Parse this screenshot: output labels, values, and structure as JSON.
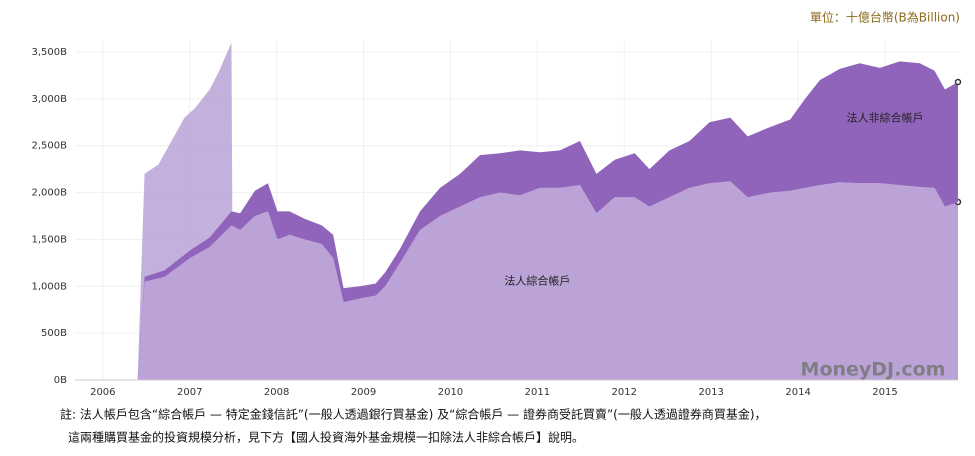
{
  "chart_data": {
    "type": "stacked_area",
    "unit_label": "單位：十億台幣(B為Billion)",
    "watermark": "MoneyDJ.com",
    "notes": [
      "註: 法人帳戶包含“綜合帳戶 — 特定金錢信託”(一般人透過銀行買基金) 及“綜合帳戶 — 證券商受託買賣”(一般人透過證券商買基金)，",
      "這兩種購買基金的投資規模分析，見下方【國人投資海外基金規模一扣除法人非綜合帳戶】說明。"
    ],
    "xlim": [
      2005.68,
      2015.84
    ],
    "xticks": [
      2006,
      2007,
      2008,
      2009,
      2010,
      2011,
      2012,
      2013,
      2014,
      2015
    ],
    "ylim": [
      0,
      3500
    ],
    "yticks": [
      {
        "value": 0,
        "label": "0B"
      },
      {
        "value": 500,
        "label": "500B"
      },
      {
        "value": 1000,
        "label": "1,000B"
      },
      {
        "value": 1500,
        "label": "1,500B"
      },
      {
        "value": 2000,
        "label": "2,000B"
      },
      {
        "value": 2500,
        "label": "2,500B"
      },
      {
        "value": 3000,
        "label": "3,000B"
      },
      {
        "value": 3500,
        "label": "3,500B"
      }
    ],
    "grid": true,
    "x": [
      2006.16,
      2006.4,
      2006.48,
      2006.71,
      2007.0,
      2007.23,
      2007.48,
      2007.58,
      2007.75,
      2007.9,
      2008.01,
      2008.15,
      2008.32,
      2008.52,
      2008.65,
      2008.77,
      2008.96,
      2009.14,
      2009.25,
      2009.42,
      2009.65,
      2009.88,
      2010.11,
      2010.34,
      2010.57,
      2010.8,
      2011.03,
      2011.26,
      2011.49,
      2011.68,
      2011.89,
      2012.12,
      2012.29,
      2012.52,
      2012.75,
      2012.98,
      2013.22,
      2013.42,
      2013.68,
      2013.91,
      2014.08,
      2014.25,
      2014.48,
      2014.71,
      2014.94,
      2015.17,
      2015.4,
      2015.57,
      2015.69,
      2015.84
    ],
    "series": [
      {
        "name": "法人綜合帳戶",
        "color": "#bba3d8",
        "values": [
          0,
          0,
          1050,
          1100,
          1300,
          1420,
          1650,
          1600,
          1750,
          1800,
          1500,
          1550,
          1500,
          1450,
          1300,
          830,
          870,
          900,
          1000,
          1250,
          1600,
          1750,
          1850,
          1950,
          2000,
          1970,
          2050,
          2050,
          2080,
          1780,
          1950,
          1950,
          1850,
          1950,
          2050,
          2100,
          2120,
          1950,
          2000,
          2020,
          2050,
          2080,
          2110,
          2100,
          2100,
          2080,
          2060,
          2050,
          1850,
          1900
        ]
      },
      {
        "name": "法人非綜合帳戶",
        "color": "#9164bb",
        "values": [
          0,
          0,
          50,
          70,
          80,
          100,
          150,
          180,
          270,
          300,
          300,
          250,
          220,
          200,
          250,
          150,
          130,
          130,
          150,
          150,
          200,
          300,
          350,
          450,
          420,
          480,
          380,
          400,
          470,
          420,
          400,
          470,
          400,
          500,
          500,
          650,
          680,
          650,
          700,
          760,
          950,
          1120,
          1210,
          1280,
          1230,
          1320,
          1320,
          1250,
          1250,
          1280
        ]
      },
      {
        "color": "#b9a2d7",
        "stack": false,
        "x": [
          2006.4,
          2006.48,
          2006.64,
          2006.82,
          2006.94,
          2007.06,
          2007.23,
          2007.34,
          2007.48,
          2007.5
        ],
        "values": [
          0,
          2200,
          2300,
          2600,
          2800,
          2900,
          3100,
          3300,
          3600,
          0
        ]
      }
    ],
    "annotations": [
      {
        "text": "法人綜合帳戶",
        "x": 2011.0,
        "y": 1050
      },
      {
        "text": "法人非綜合帳戶",
        "x": 2015.0,
        "y": 2790
      }
    ]
  }
}
